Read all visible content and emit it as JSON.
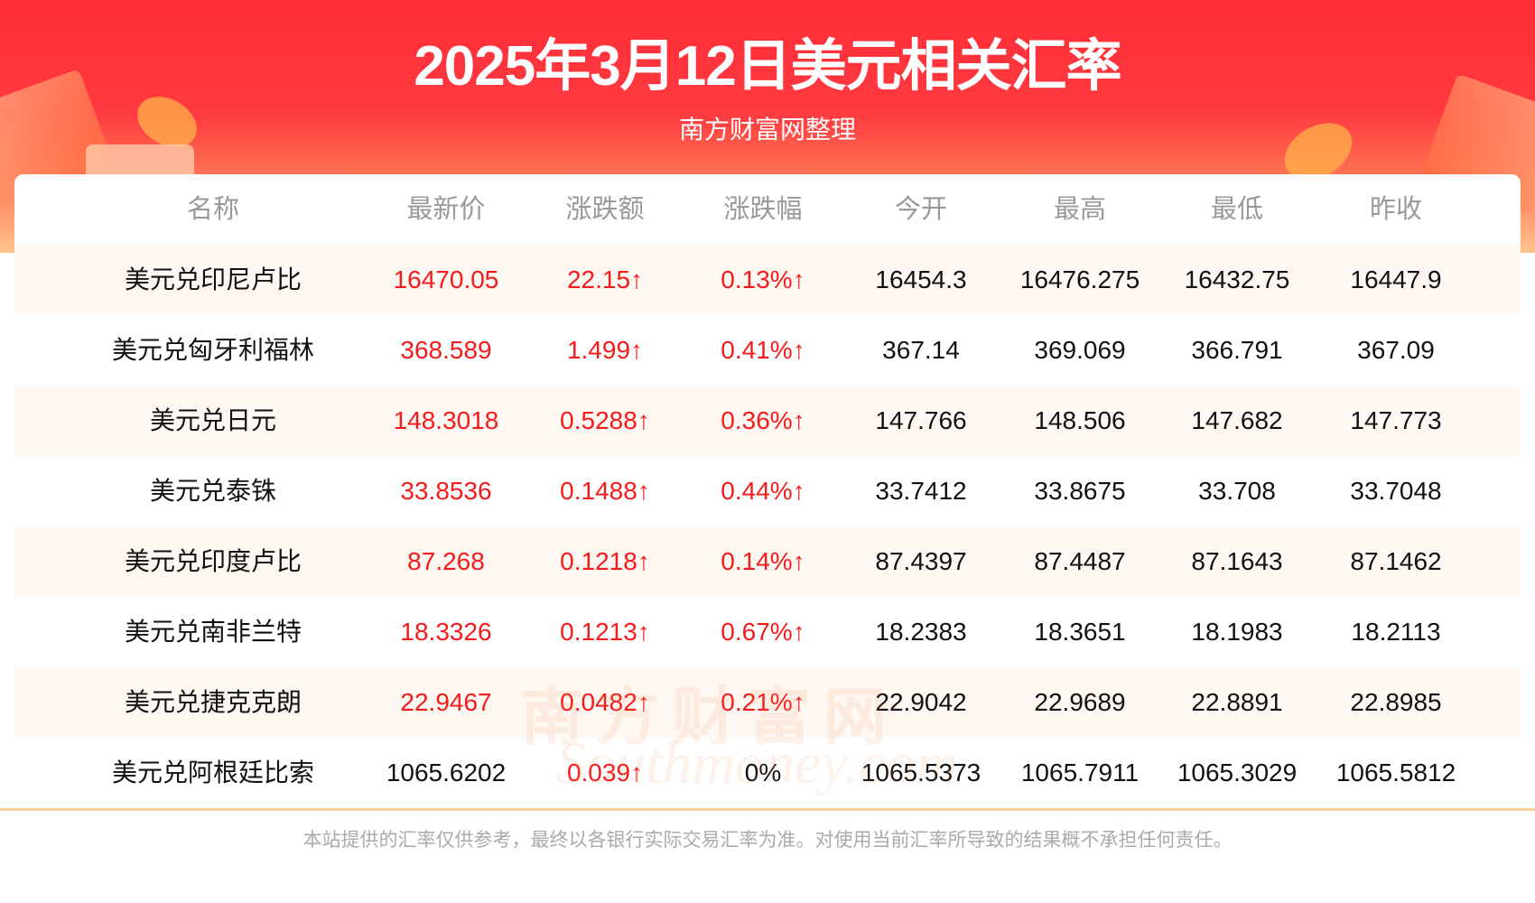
{
  "header": {
    "title": "2025年3月12日美元相关汇率",
    "subtitle": "南方财富网整理"
  },
  "colors": {
    "up": "#f41b1b",
    "banner": "#ff2d37",
    "alt_row": "#fff7f1",
    "divider": "#f9cb97"
  },
  "table": {
    "columns": [
      "名称",
      "最新价",
      "涨跌额",
      "涨跌幅",
      "今开",
      "最高",
      "最低",
      "昨收"
    ],
    "rows": [
      {
        "name": "美元兑印尼卢比",
        "latest": "16470.05",
        "change": "22.15↑",
        "pct": "0.13%↑",
        "open": "16454.3",
        "high": "16476.275",
        "low": "16432.75",
        "prev": "16447.9",
        "pct_up": true
      },
      {
        "name": "美元兑匈牙利福林",
        "latest": "368.589",
        "change": "1.499↑",
        "pct": "0.41%↑",
        "open": "367.14",
        "high": "369.069",
        "low": "366.791",
        "prev": "367.09",
        "pct_up": true
      },
      {
        "name": "美元兑日元",
        "latest": "148.3018",
        "change": "0.5288↑",
        "pct": "0.36%↑",
        "open": "147.766",
        "high": "148.506",
        "low": "147.682",
        "prev": "147.773",
        "pct_up": true
      },
      {
        "name": "美元兑泰铢",
        "latest": "33.8536",
        "change": "0.1488↑",
        "pct": "0.44%↑",
        "open": "33.7412",
        "high": "33.8675",
        "low": "33.708",
        "prev": "33.7048",
        "pct_up": true
      },
      {
        "name": "美元兑印度卢比",
        "latest": "87.268",
        "change": "0.1218↑",
        "pct": "0.14%↑",
        "open": "87.4397",
        "high": "87.4487",
        "low": "87.1643",
        "prev": "87.1462",
        "pct_up": true
      },
      {
        "name": "美元兑南非兰特",
        "latest": "18.3326",
        "change": "0.1213↑",
        "pct": "0.67%↑",
        "open": "18.2383",
        "high": "18.3651",
        "low": "18.1983",
        "prev": "18.2113",
        "pct_up": true
      },
      {
        "name": "美元兑捷克克朗",
        "latest": "22.9467",
        "change": "0.0482↑",
        "pct": "0.21%↑",
        "open": "22.9042",
        "high": "22.9689",
        "low": "22.8891",
        "prev": "22.8985",
        "pct_up": true
      },
      {
        "name": "美元兑阿根廷比索",
        "latest": "1065.6202",
        "change": "0.039↑",
        "pct": "0%",
        "open": "1065.5373",
        "high": "1065.7911",
        "low": "1065.3029",
        "prev": "1065.5812",
        "pct_up": false
      }
    ]
  },
  "watermark": {
    "cn": "南方财富网",
    "en": "Southmoney.com"
  },
  "footer": "本站提供的汇率仅供参考，最终以各银行实际交易汇率为准。对使用当前汇率所导致的结果概不承担任何责任。"
}
